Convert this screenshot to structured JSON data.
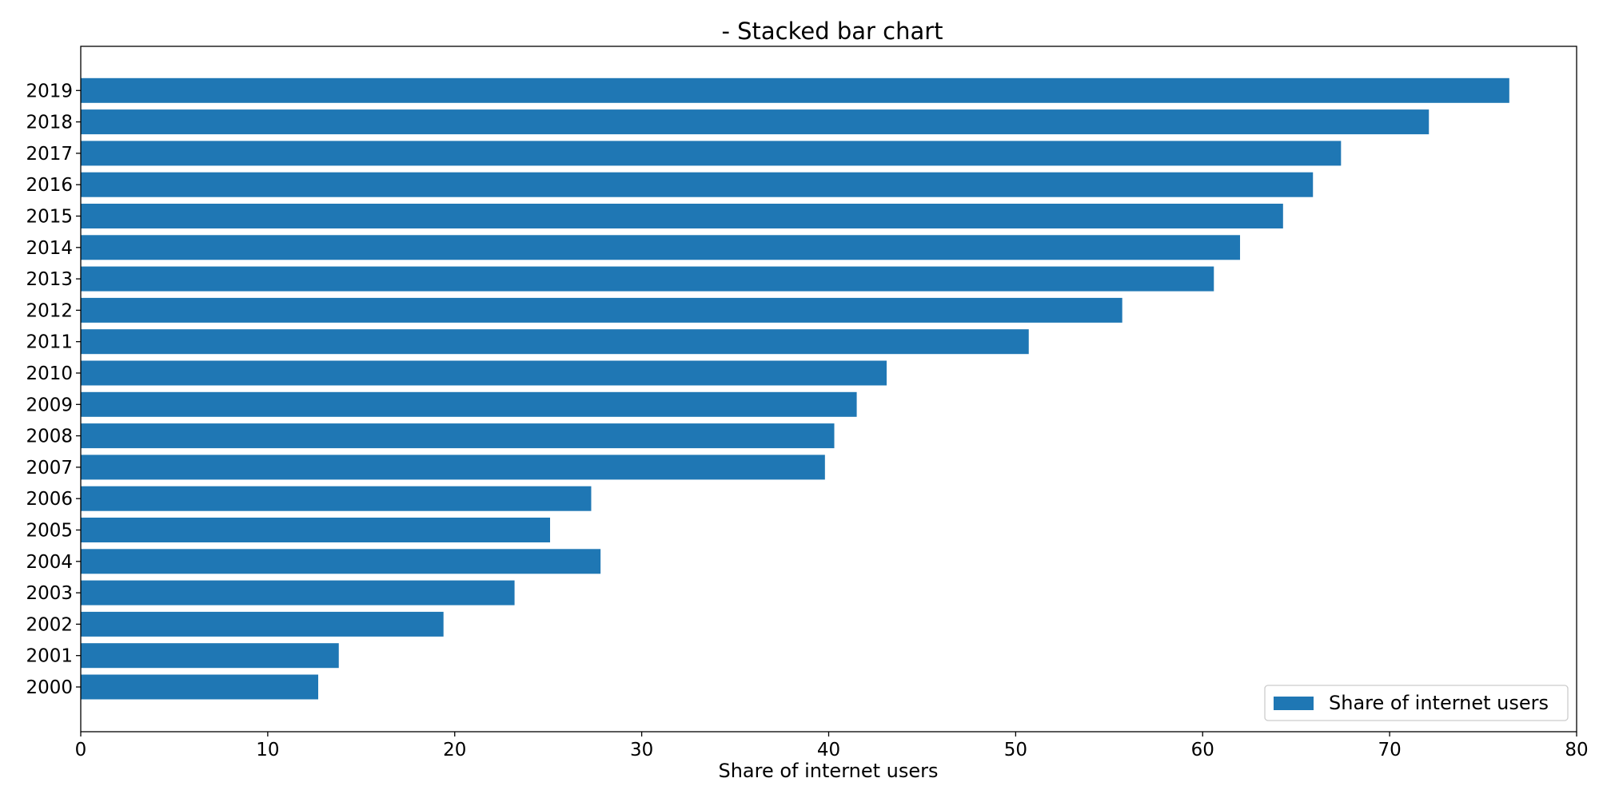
{
  "chart_data": {
    "type": "bar",
    "orientation": "horizontal",
    "title": "- Stacked bar chart",
    "xlabel": "Share of internet users",
    "ylabel": "",
    "xlim": [
      0,
      80
    ],
    "xticks": [
      0,
      10,
      20,
      30,
      40,
      50,
      60,
      70,
      80
    ],
    "grid": false,
    "legend_position": "bottom-right",
    "categories": [
      "2000",
      "2001",
      "2002",
      "2003",
      "2004",
      "2005",
      "2006",
      "2007",
      "2008",
      "2009",
      "2010",
      "2011",
      "2012",
      "2013",
      "2014",
      "2015",
      "2016",
      "2017",
      "2018",
      "2019"
    ],
    "series": [
      {
        "name": "Share of internet users",
        "color": "#1f77b4",
        "values": [
          12.7,
          13.8,
          19.4,
          23.2,
          27.8,
          25.1,
          27.3,
          39.8,
          40.3,
          41.5,
          43.1,
          50.7,
          55.7,
          60.6,
          62.0,
          64.3,
          65.9,
          67.4,
          72.1,
          76.4
        ]
      }
    ]
  }
}
